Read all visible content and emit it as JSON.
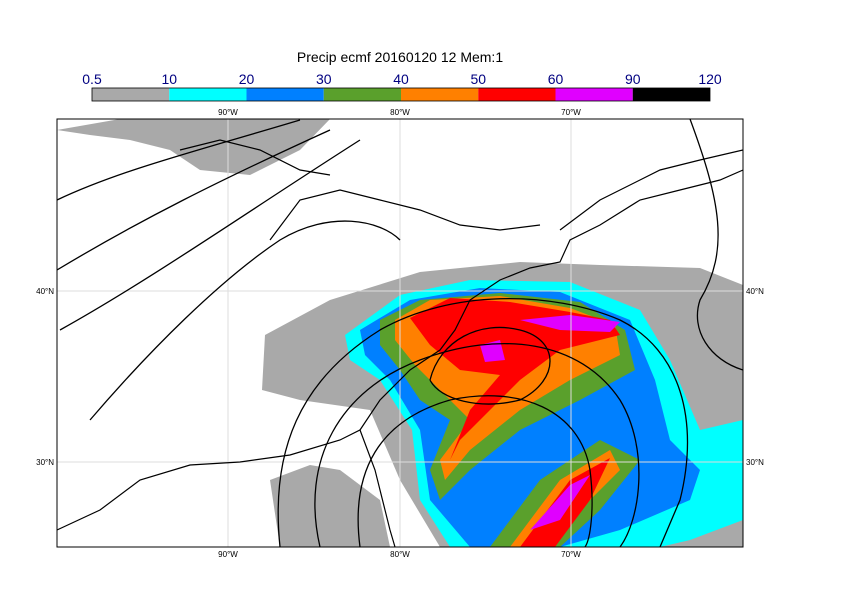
{
  "title": "Precip ecmf 20160120 12 Mem:1",
  "colorbar": {
    "ticks": [
      "0.5",
      "10",
      "20",
      "30",
      "40",
      "50",
      "60",
      "90",
      "120"
    ],
    "colors": [
      "#a9a9a9",
      "#00ffff",
      "#0080ff",
      "#5aa02c",
      "#ff8000",
      "#ff0000",
      "#e000ff",
      "#000000"
    ]
  },
  "lon_labels": [
    "90°W",
    "80°W",
    "70°W"
  ],
  "lat_labels": [
    "40°N",
    "30°N"
  ]
}
